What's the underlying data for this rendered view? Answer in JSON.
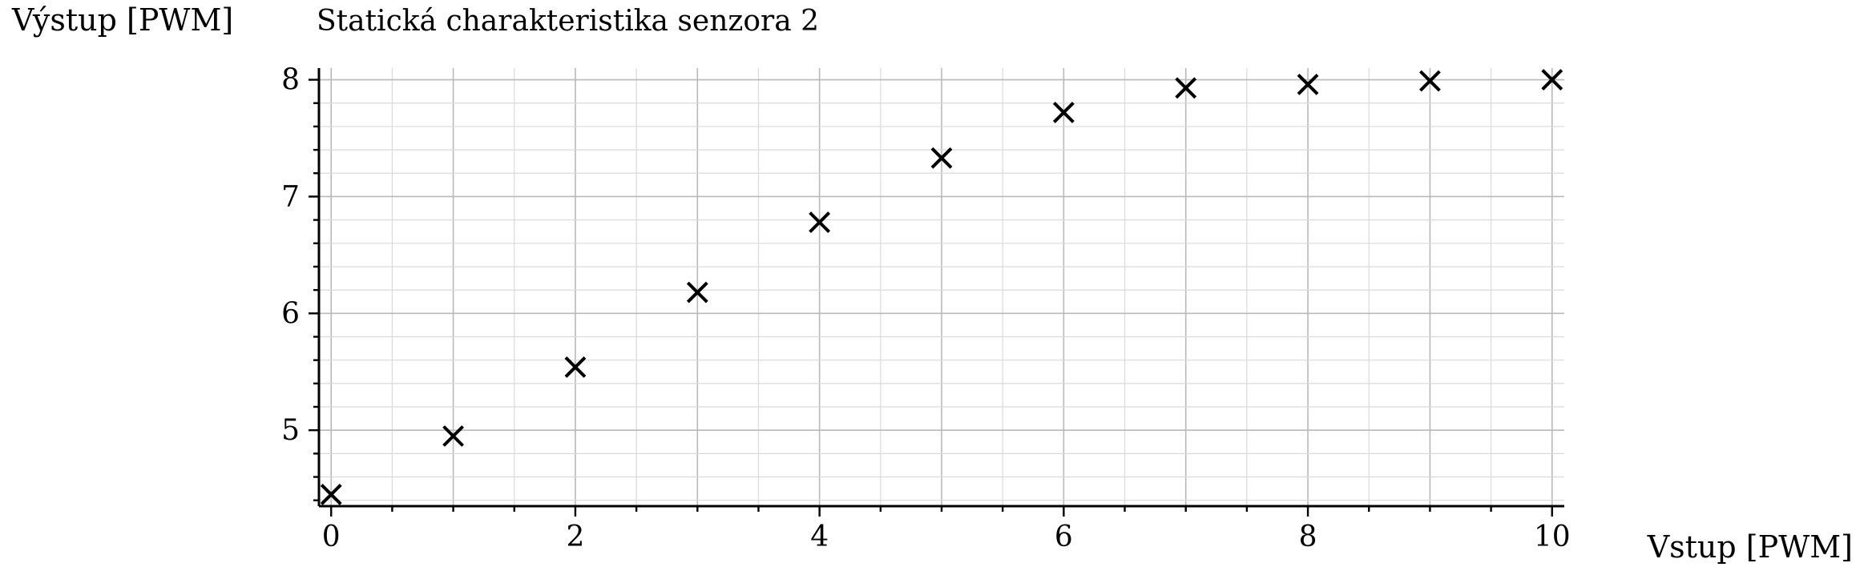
{
  "chart_data": {
    "type": "scatter",
    "title": "Statická charakteristika senzora 2",
    "xlabel": "Vstup [PWM]",
    "ylabel": "Výstup [PWM]",
    "xlim": [
      -0.1,
      10.1
    ],
    "ylim": [
      4.35,
      8.1
    ],
    "grid": true,
    "marker": "x",
    "x_ticks": [
      0,
      2,
      4,
      6,
      8,
      10
    ],
    "y_ticks": [
      5,
      6,
      7,
      8
    ],
    "series": [
      {
        "x": [
          0,
          1,
          2,
          3,
          4,
          5,
          6,
          7,
          8,
          9,
          10
        ],
        "y": [
          4.45,
          4.95,
          5.54,
          6.18,
          6.78,
          7.33,
          7.72,
          7.93,
          7.96,
          7.99,
          8.0
        ]
      }
    ]
  }
}
